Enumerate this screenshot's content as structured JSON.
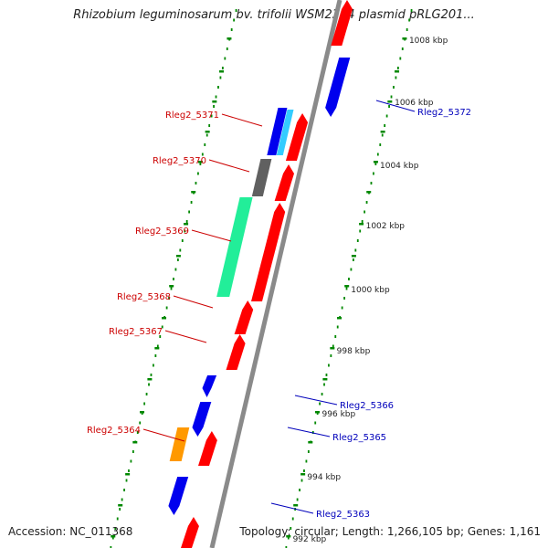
{
  "title": "Rhizobium leguminosarum bv. trifolii WSM2304 plasmid pRLG201...",
  "accession": "Accession: NC_011368",
  "topology": "Topology: circular; Length: 1,266,105 bp; Genes: 1,161",
  "colors": {
    "backbone": "#8a8a8a",
    "forward": "#ff0000",
    "reverse": "#0000ee",
    "ticks": "#008800",
    "label_red": "#cc0000",
    "label_blue": "#0000bb",
    "grey_gene": "#606060",
    "cyan_gene": "#33ccff",
    "green_gene": "#22ee99",
    "orange_gene": "#ff9900"
  },
  "scale": {
    "unit": "kbp",
    "labels": [
      "1008 kbp",
      "1006 kbp",
      "1004 kbp",
      "1002 kbp",
      "1000 kbp",
      "998 kbp",
      "996 kbp",
      "994 kbp",
      "992 kbp"
    ]
  },
  "gene_labels_left": [
    "Rleg2_5371",
    "Rleg2_5370",
    "Rleg2_5369",
    "Rleg2_5368",
    "Rleg2_5367",
    "Rleg2_5364"
  ],
  "gene_labels_right": [
    "Rleg2_5372",
    "Rleg2_5366",
    "Rleg2_5365",
    "Rleg2_5363"
  ]
}
